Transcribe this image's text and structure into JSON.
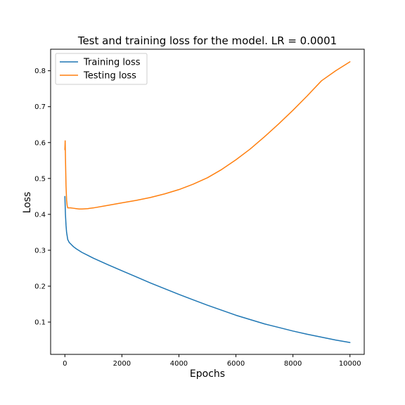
{
  "chart_data": {
    "type": "line",
    "title": "Test and training loss for the model. LR = 0.0001",
    "xlabel": "Epochs",
    "ylabel": "Loss",
    "xlim": [
      -500,
      10500
    ],
    "ylim": [
      0.01,
      0.86
    ],
    "xticks": [
      0,
      2000,
      4000,
      6000,
      8000,
      10000
    ],
    "xtick_labels": [
      "0",
      "2000",
      "4000",
      "6000",
      "8000",
      "10000"
    ],
    "yticks": [
      0.1,
      0.2,
      0.3,
      0.4,
      0.5,
      0.6,
      0.7,
      0.8
    ],
    "ytick_labels": [
      "0.1",
      "0.2",
      "0.3",
      "0.4",
      "0.5",
      "0.6",
      "0.7",
      "0.8"
    ],
    "grid": false,
    "legend_position": "top-left",
    "series": [
      {
        "name": "Training loss",
        "color": "#1f77b4",
        "x": [
          0,
          20,
          40,
          60,
          80,
          100,
          150,
          200,
          300,
          400,
          600,
          800,
          1000,
          1500,
          2000,
          2500,
          3000,
          3500,
          4000,
          4500,
          5000,
          5500,
          6000,
          6500,
          7000,
          7500,
          8000,
          8500,
          9000,
          9500,
          10000
        ],
        "values": [
          0.45,
          0.4,
          0.37,
          0.35,
          0.34,
          0.33,
          0.322,
          0.318,
          0.31,
          0.304,
          0.294,
          0.286,
          0.278,
          0.26,
          0.243,
          0.226,
          0.209,
          0.193,
          0.177,
          0.162,
          0.147,
          0.133,
          0.119,
          0.107,
          0.095,
          0.085,
          0.075,
          0.066,
          0.058,
          0.05,
          0.043
        ]
      },
      {
        "name": "Testing loss",
        "color": "#ff7f0e",
        "x": [
          0,
          10,
          20,
          40,
          60,
          80,
          100,
          200,
          300,
          400,
          500,
          600,
          800,
          1000,
          1500,
          2000,
          2500,
          3000,
          3500,
          4000,
          4500,
          5000,
          5500,
          6000,
          6500,
          7000,
          7500,
          8000,
          8500,
          9000,
          9500,
          10000
        ],
        "values": [
          0.58,
          0.605,
          0.56,
          0.48,
          0.44,
          0.425,
          0.418,
          0.418,
          0.417,
          0.416,
          0.415,
          0.415,
          0.416,
          0.418,
          0.425,
          0.432,
          0.439,
          0.447,
          0.457,
          0.469,
          0.484,
          0.502,
          0.525,
          0.552,
          0.582,
          0.616,
          0.652,
          0.69,
          0.73,
          0.772,
          0.8,
          0.825
        ]
      }
    ]
  }
}
